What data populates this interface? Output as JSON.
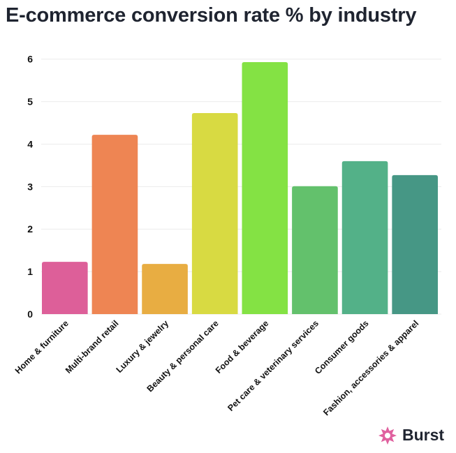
{
  "chart_data": {
    "type": "bar",
    "title": "E-commerce conversion rate % by industry",
    "categories": [
      "Home & furniture",
      "Multi-brand retail",
      "Luxury & jewelry",
      "Beauty & personal care",
      "Food & beverage",
      "Pet care & veterinary services",
      "Consumer goods",
      "Fashion, accessories & apparel"
    ],
    "values": [
      1.23,
      4.22,
      1.18,
      4.73,
      5.93,
      3.01,
      3.6,
      3.27
    ],
    "colors": [
      "#dd5f99",
      "#ee8553",
      "#e8ad42",
      "#d8da42",
      "#84e244",
      "#63c16c",
      "#53b188",
      "#469785"
    ],
    "ylim": [
      0,
      6
    ],
    "yticks": [
      0,
      1,
      2,
      3,
      4,
      5,
      6
    ],
    "grid": true,
    "legend": "none",
    "xlabel": "",
    "ylabel": ""
  },
  "brand": {
    "name": "Burst",
    "color": "#e0619f"
  }
}
